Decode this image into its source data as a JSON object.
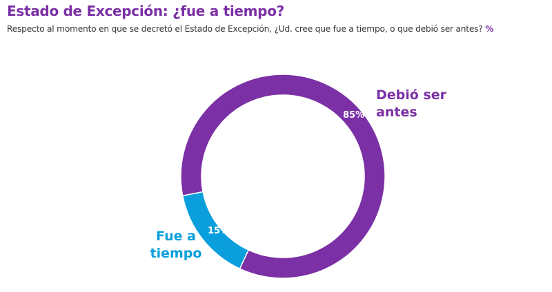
{
  "title": "Estado de Excepción: ¿fue a tiempo?",
  "subtitle": "Respecto al momento en que se decretó el Estado de Excepción, ¿Ud. cree que fue a tiempo, o que debió ser antes?",
  "unit": "%",
  "chart_data": {
    "type": "pie",
    "variant": "donut",
    "title": "Estado de Excepción: ¿fue a tiempo?",
    "categories": [
      "Debió ser antes",
      "Fue a tiempo"
    ],
    "values": [
      85,
      15
    ],
    "data_labels": [
      "85%",
      "15%"
    ],
    "colors": [
      "#7b30a6",
      "#0a9fdc"
    ],
    "legend": "none"
  }
}
